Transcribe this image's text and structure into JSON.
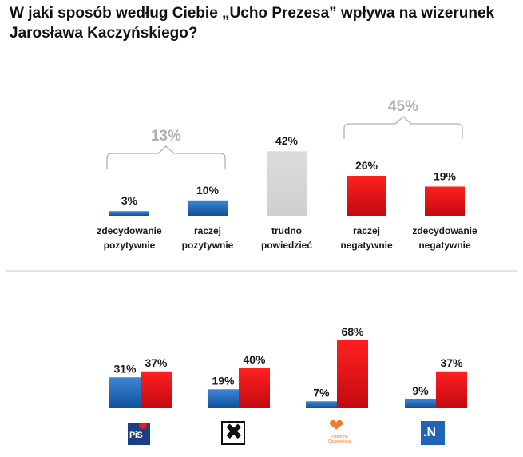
{
  "title": {
    "line1": "W jaki sposób według Ciebie „Ucho Prezesa” wpływa na wizerunek",
    "line2": "Jarosława Kaczyńskiego?"
  },
  "colors": {
    "positive": "#1f66b8",
    "negative": "#e8141b",
    "neutral": "#d6d6d6",
    "bracket": "#b0b0b0"
  },
  "chart_data": [
    {
      "type": "bar",
      "title": "W jaki sposób według Ciebie „Ucho Prezesa” wpływa na wizerunek Jarosława Kaczyńskiego?",
      "categories": [
        [
          "zdecydowanie",
          "pozytywnie"
        ],
        [
          "raczej",
          "pozytywnie"
        ],
        [
          "trudno",
          "powiedzieć"
        ],
        [
          "raczej",
          "negatywnie"
        ],
        [
          "zdecydowanie",
          "negatywnie"
        ]
      ],
      "values": [
        3,
        10,
        42,
        26,
        19
      ],
      "value_labels": [
        "3%",
        "10%",
        "42%",
        "26%",
        "19%"
      ],
      "bar_kinds": [
        "positive",
        "positive",
        "neutral",
        "negative",
        "negative"
      ],
      "ylim": [
        0,
        50
      ],
      "groups": [
        {
          "label": "13%",
          "value": 13,
          "from": 0,
          "to": 1
        },
        {
          "label": "45%",
          "value": 45,
          "from": 3,
          "to": 4
        }
      ]
    },
    {
      "type": "bar",
      "categories": [
        "PiS",
        "Kukiz'15",
        "Platforma Obywatelska",
        "Nowoczesna"
      ],
      "series": [
        {
          "name": "pozytywnie",
          "values": [
            31,
            19,
            7,
            9
          ],
          "labels": [
            "31%",
            "19%",
            "7%",
            "9%"
          ]
        },
        {
          "name": "negatywnie",
          "values": [
            37,
            40,
            68,
            37
          ],
          "labels": [
            "37%",
            "40%",
            "68%",
            "37%"
          ]
        }
      ],
      "ylim": [
        0,
        70
      ],
      "logos": {
        "pis": "PiS",
        "kukiz": "✖",
        "po_heart": "❤",
        "po": "Platforma Obywatelska",
        "n": ".N"
      }
    }
  ]
}
